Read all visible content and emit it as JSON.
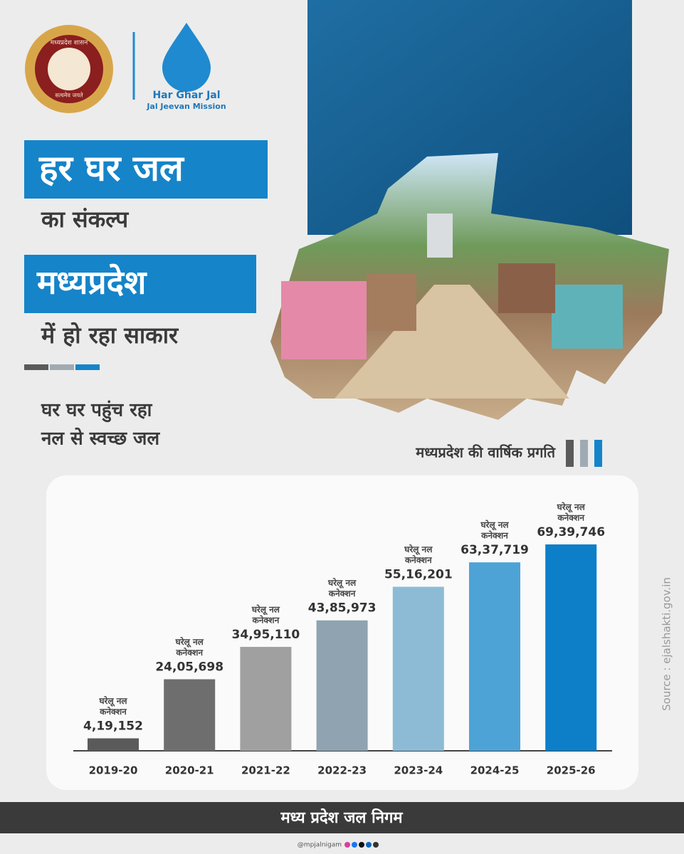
{
  "header": {
    "emblem_text": "मध्यप्रदेश शासन",
    "emblem_motto": "सत्यमेव जयते",
    "brand": "Har Ghar Jal",
    "mission": "Jal Jeevan Mission"
  },
  "headline": {
    "line1": "हर घर जल",
    "line2": "का संकल्प",
    "line3": "मध्यप्रदेश",
    "line4": "में हो रहा साकार",
    "tagline1": "घर घर पहुंच रहा",
    "tagline2": "नल से स्वच्छ जल"
  },
  "chart_data": {
    "type": "bar",
    "title": "मध्यप्रदेश की वार्षिक प्रगति",
    "categories": [
      "2019-20",
      "2020-21",
      "2021-22",
      "2022-23",
      "2023-24",
      "2024-25",
      "2025-26"
    ],
    "values": [
      419152,
      2405698,
      3495110,
      4385973,
      5516201,
      6337719,
      6939746
    ],
    "value_labels": [
      "4,19,152",
      "24,05,698",
      "34,95,110",
      "43,85,973",
      "55,16,201",
      "63,37,719",
      "69,39,746"
    ],
    "annotation": [
      "घरेलू नल",
      "कनेक्शन"
    ],
    "colors": [
      "#5a5a5a",
      "#6e6e6e",
      "#a0a0a0",
      "#8fa3b1",
      "#8dbbd6",
      "#4ea3d6",
      "#0c7fc8"
    ],
    "source": "Source : ejalshakti.gov.in"
  },
  "footer": {
    "org": "मध्य प्रदेश जल निगम",
    "handle": "@mpjalnigam"
  }
}
